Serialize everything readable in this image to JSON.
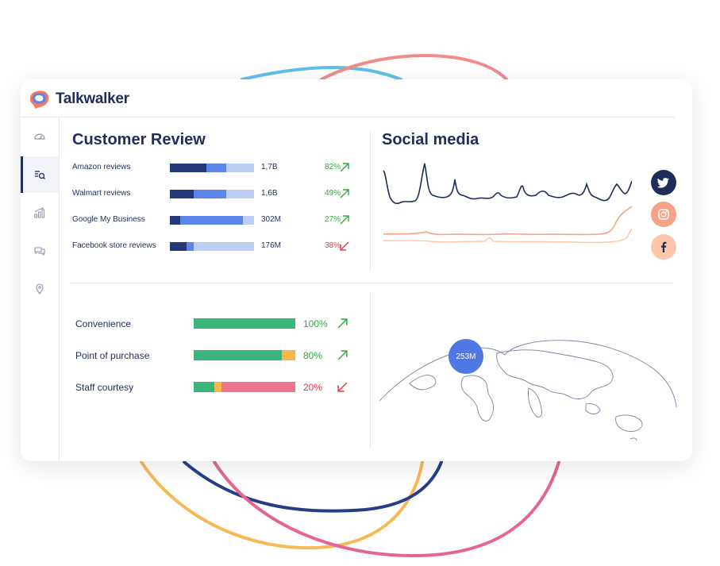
{
  "brand": {
    "name": "Talkwalker",
    "logo_icon": "talkwalker-logo"
  },
  "sidebar": {
    "items": [
      {
        "icon": "speedometer-icon"
      },
      {
        "icon": "search-list-icon",
        "active": true
      },
      {
        "icon": "bar-chart-icon"
      },
      {
        "icon": "chat-bubbles-icon"
      },
      {
        "icon": "location-pin-icon"
      }
    ]
  },
  "customer_review": {
    "title": "Customer Review",
    "rows": [
      {
        "label": "Amazon reviews",
        "value": "1,7B",
        "pct": "82%",
        "trend": "up",
        "segments": [
          0.43,
          0.24,
          0.33
        ]
      },
      {
        "label": "Walmart reviews",
        "value": "1,6B",
        "pct": "49%",
        "trend": "up",
        "segments": [
          0.28,
          0.39,
          0.33
        ]
      },
      {
        "label": "Google My Business",
        "value": "302M",
        "pct": "27%",
        "trend": "up",
        "segments": [
          0.12,
          0.75,
          0.13
        ]
      },
      {
        "label": "Facebook store reviews",
        "value": "176M",
        "pct": "38%",
        "trend": "down",
        "segments": [
          0.2,
          0.08,
          0.72
        ]
      }
    ],
    "colors": [
      "#243a78",
      "#5b86e8",
      "#bccdf6"
    ]
  },
  "social_media": {
    "title": "Social media",
    "networks": [
      "twitter",
      "instagram",
      "facebook"
    ],
    "colors": {
      "twitter": "#1f2d5a",
      "instagram": "#f7a284",
      "facebook": "#fbc7a8"
    }
  },
  "metrics": {
    "rows": [
      {
        "label": "Convenience",
        "pct": "100%",
        "trend": "up",
        "segments": [
          1.0,
          0,
          0
        ]
      },
      {
        "label": "Point of purchase",
        "pct": "80%",
        "trend": "up",
        "segments": [
          0.87,
          0.13,
          0
        ]
      },
      {
        "label": "Staff courtesy",
        "pct": "20%",
        "trend": "down",
        "segments": [
          0.2,
          0.07,
          0.73
        ]
      }
    ],
    "colors": [
      "#3bb57b",
      "#f5b84c",
      "#ec7591"
    ]
  },
  "world_map": {
    "bubble_value": "253M"
  }
}
